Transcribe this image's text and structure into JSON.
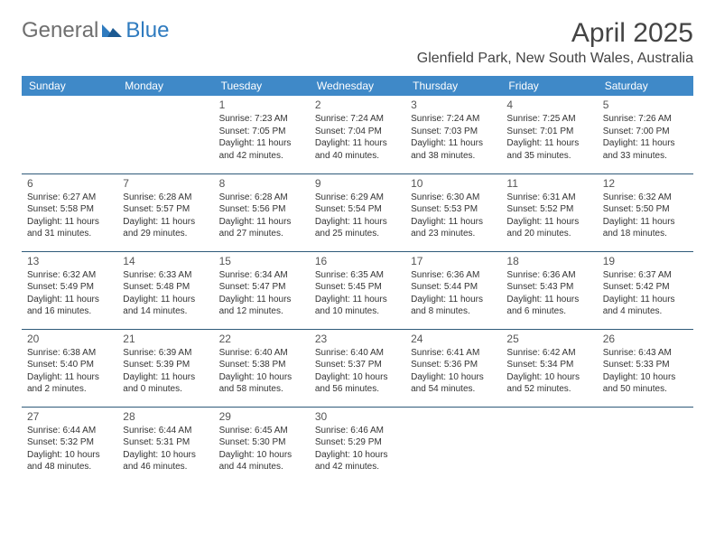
{
  "brand": {
    "part1": "General",
    "part2": "Blue"
  },
  "title": "April 2025",
  "location": "Glenfield Park, New South Wales, Australia",
  "colors": {
    "header_bg": "#3f89c8",
    "header_fg": "#ffffff",
    "row_border": "#2f5a7a",
    "text": "#333333",
    "brand_gray": "#6f6f6f",
    "brand_blue": "#2f7bbf"
  },
  "days_of_week": [
    "Sunday",
    "Monday",
    "Tuesday",
    "Wednesday",
    "Thursday",
    "Friday",
    "Saturday"
  ],
  "weeks": [
    [
      null,
      null,
      {
        "n": "1",
        "sunrise": "Sunrise: 7:23 AM",
        "sunset": "Sunset: 7:05 PM",
        "daylight": "Daylight: 11 hours and 42 minutes."
      },
      {
        "n": "2",
        "sunrise": "Sunrise: 7:24 AM",
        "sunset": "Sunset: 7:04 PM",
        "daylight": "Daylight: 11 hours and 40 minutes."
      },
      {
        "n": "3",
        "sunrise": "Sunrise: 7:24 AM",
        "sunset": "Sunset: 7:03 PM",
        "daylight": "Daylight: 11 hours and 38 minutes."
      },
      {
        "n": "4",
        "sunrise": "Sunrise: 7:25 AM",
        "sunset": "Sunset: 7:01 PM",
        "daylight": "Daylight: 11 hours and 35 minutes."
      },
      {
        "n": "5",
        "sunrise": "Sunrise: 7:26 AM",
        "sunset": "Sunset: 7:00 PM",
        "daylight": "Daylight: 11 hours and 33 minutes."
      }
    ],
    [
      {
        "n": "6",
        "sunrise": "Sunrise: 6:27 AM",
        "sunset": "Sunset: 5:58 PM",
        "daylight": "Daylight: 11 hours and 31 minutes."
      },
      {
        "n": "7",
        "sunrise": "Sunrise: 6:28 AM",
        "sunset": "Sunset: 5:57 PM",
        "daylight": "Daylight: 11 hours and 29 minutes."
      },
      {
        "n": "8",
        "sunrise": "Sunrise: 6:28 AM",
        "sunset": "Sunset: 5:56 PM",
        "daylight": "Daylight: 11 hours and 27 minutes."
      },
      {
        "n": "9",
        "sunrise": "Sunrise: 6:29 AM",
        "sunset": "Sunset: 5:54 PM",
        "daylight": "Daylight: 11 hours and 25 minutes."
      },
      {
        "n": "10",
        "sunrise": "Sunrise: 6:30 AM",
        "sunset": "Sunset: 5:53 PM",
        "daylight": "Daylight: 11 hours and 23 minutes."
      },
      {
        "n": "11",
        "sunrise": "Sunrise: 6:31 AM",
        "sunset": "Sunset: 5:52 PM",
        "daylight": "Daylight: 11 hours and 20 minutes."
      },
      {
        "n": "12",
        "sunrise": "Sunrise: 6:32 AM",
        "sunset": "Sunset: 5:50 PM",
        "daylight": "Daylight: 11 hours and 18 minutes."
      }
    ],
    [
      {
        "n": "13",
        "sunrise": "Sunrise: 6:32 AM",
        "sunset": "Sunset: 5:49 PM",
        "daylight": "Daylight: 11 hours and 16 minutes."
      },
      {
        "n": "14",
        "sunrise": "Sunrise: 6:33 AM",
        "sunset": "Sunset: 5:48 PM",
        "daylight": "Daylight: 11 hours and 14 minutes."
      },
      {
        "n": "15",
        "sunrise": "Sunrise: 6:34 AM",
        "sunset": "Sunset: 5:47 PM",
        "daylight": "Daylight: 11 hours and 12 minutes."
      },
      {
        "n": "16",
        "sunrise": "Sunrise: 6:35 AM",
        "sunset": "Sunset: 5:45 PM",
        "daylight": "Daylight: 11 hours and 10 minutes."
      },
      {
        "n": "17",
        "sunrise": "Sunrise: 6:36 AM",
        "sunset": "Sunset: 5:44 PM",
        "daylight": "Daylight: 11 hours and 8 minutes."
      },
      {
        "n": "18",
        "sunrise": "Sunrise: 6:36 AM",
        "sunset": "Sunset: 5:43 PM",
        "daylight": "Daylight: 11 hours and 6 minutes."
      },
      {
        "n": "19",
        "sunrise": "Sunrise: 6:37 AM",
        "sunset": "Sunset: 5:42 PM",
        "daylight": "Daylight: 11 hours and 4 minutes."
      }
    ],
    [
      {
        "n": "20",
        "sunrise": "Sunrise: 6:38 AM",
        "sunset": "Sunset: 5:40 PM",
        "daylight": "Daylight: 11 hours and 2 minutes."
      },
      {
        "n": "21",
        "sunrise": "Sunrise: 6:39 AM",
        "sunset": "Sunset: 5:39 PM",
        "daylight": "Daylight: 11 hours and 0 minutes."
      },
      {
        "n": "22",
        "sunrise": "Sunrise: 6:40 AM",
        "sunset": "Sunset: 5:38 PM",
        "daylight": "Daylight: 10 hours and 58 minutes."
      },
      {
        "n": "23",
        "sunrise": "Sunrise: 6:40 AM",
        "sunset": "Sunset: 5:37 PM",
        "daylight": "Daylight: 10 hours and 56 minutes."
      },
      {
        "n": "24",
        "sunrise": "Sunrise: 6:41 AM",
        "sunset": "Sunset: 5:36 PM",
        "daylight": "Daylight: 10 hours and 54 minutes."
      },
      {
        "n": "25",
        "sunrise": "Sunrise: 6:42 AM",
        "sunset": "Sunset: 5:34 PM",
        "daylight": "Daylight: 10 hours and 52 minutes."
      },
      {
        "n": "26",
        "sunrise": "Sunrise: 6:43 AM",
        "sunset": "Sunset: 5:33 PM",
        "daylight": "Daylight: 10 hours and 50 minutes."
      }
    ],
    [
      {
        "n": "27",
        "sunrise": "Sunrise: 6:44 AM",
        "sunset": "Sunset: 5:32 PM",
        "daylight": "Daylight: 10 hours and 48 minutes."
      },
      {
        "n": "28",
        "sunrise": "Sunrise: 6:44 AM",
        "sunset": "Sunset: 5:31 PM",
        "daylight": "Daylight: 10 hours and 46 minutes."
      },
      {
        "n": "29",
        "sunrise": "Sunrise: 6:45 AM",
        "sunset": "Sunset: 5:30 PM",
        "daylight": "Daylight: 10 hours and 44 minutes."
      },
      {
        "n": "30",
        "sunrise": "Sunrise: 6:46 AM",
        "sunset": "Sunset: 5:29 PM",
        "daylight": "Daylight: 10 hours and 42 minutes."
      },
      null,
      null,
      null
    ]
  ]
}
